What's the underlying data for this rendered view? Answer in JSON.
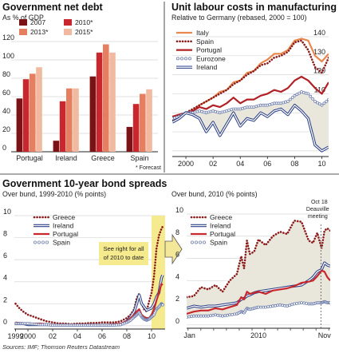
{
  "source": "Sources: IMF; Thomson Reuters Datastream",
  "chart_data": [
    {
      "id": "debt",
      "type": "bar",
      "title": "Government net debt",
      "subtitle": "As % of GDP",
      "categories": [
        "Portugal",
        "Ireland",
        "Greece",
        "Spain"
      ],
      "series": [
        {
          "name": "2007",
          "color": "#7b1216",
          "values": [
            58,
            12,
            82,
            27
          ]
        },
        {
          "name": "2010*",
          "color": "#c8282d",
          "values": [
            79,
            55,
            108,
            52
          ]
        },
        {
          "name": "2013*",
          "color": "#e57f60",
          "values": [
            85,
            69,
            117,
            63
          ]
        },
        {
          "name": "2015*",
          "color": "#f1b9a0",
          "values": [
            92,
            69,
            108,
            68
          ]
        }
      ],
      "ylim": [
        0,
        120
      ],
      "yticks": [
        0,
        20,
        40,
        60,
        80,
        100,
        120
      ],
      "forecast_note": "* Forecast"
    },
    {
      "id": "ulc",
      "type": "line",
      "title": "Unit labour costs in manufacturing",
      "subtitle": "Relative to Germany (rebased, 2000 = 100)",
      "x": [
        1999.0,
        1999.5,
        2000.0,
        2000.5,
        2001.0,
        2001.5,
        2002.0,
        2002.5,
        2003.0,
        2003.5,
        2004.0,
        2004.5,
        2005.0,
        2005.5,
        2006.0,
        2006.5,
        2007.0,
        2007.5,
        2008.0,
        2008.5,
        2009.0,
        2009.5,
        2010.0,
        2010.5
      ],
      "series": [
        {
          "name": "Italy",
          "color": "#e8884f",
          "style": "solid",
          "values": [
            97,
            98,
            100,
            101,
            104,
            106,
            108,
            111,
            112,
            116,
            117,
            121,
            122,
            126,
            128,
            131,
            131,
            133,
            138,
            139,
            138,
            130,
            127,
            131
          ]
        },
        {
          "name": "Spain",
          "color": "#8b1a1a",
          "style": "dotted",
          "values": [
            96,
            98,
            100,
            102,
            104,
            106,
            108,
            110,
            112,
            115,
            117,
            120,
            122,
            125,
            126,
            129,
            130,
            132,
            137,
            138,
            133,
            124,
            121,
            129
          ]
        },
        {
          "name": "Portugal",
          "color": "#b21f24",
          "style": "solid",
          "values": [
            98,
            99,
            100,
            101,
            103,
            102,
            104,
            103,
            105,
            108,
            105,
            107,
            107,
            109,
            110,
            112,
            111,
            113,
            117,
            119,
            117,
            113,
            110,
            116
          ]
        },
        {
          "name": "Eurozone",
          "color": "#6f7fae",
          "style": "circles",
          "values": [
            97,
            98,
            100,
            100,
            101,
            100,
            101,
            100,
            101,
            102,
            102,
            103,
            103,
            104,
            104,
            105,
            105,
            106,
            109,
            111,
            110,
            106,
            104,
            107
          ]
        },
        {
          "name": "Ireland",
          "color": "#2b3f86",
          "style": "double",
          "values": [
            95,
            97,
            100,
            99,
            97,
            90,
            95,
            88,
            94,
            100,
            93,
            97,
            96,
            100,
            98,
            101,
            102,
            99,
            104,
            101,
            97,
            83,
            80,
            82
          ]
        }
      ],
      "xticks": [
        "2000",
        "02",
        "04",
        "06",
        "08",
        "10"
      ],
      "xtick_values": [
        2000,
        2002,
        2004,
        2006,
        2008,
        2010
      ],
      "ylim": [
        77,
        140
      ],
      "yticks": [
        80,
        90,
        100,
        110,
        120,
        130,
        140
      ],
      "shade": "between Eurozone and Ireland"
    },
    {
      "id": "spreads_long",
      "type": "line",
      "title": "Government 10-year bond spreads",
      "subtitle": "Over bund, 1999-2010 (% points)",
      "x": [
        1999.0,
        1999.3,
        1999.6,
        2000.0,
        2000.5,
        2001.0,
        2001.5,
        2002.0,
        2002.5,
        2003.0,
        2003.5,
        2004.0,
        2004.5,
        2005.0,
        2005.5,
        2006.0,
        2006.5,
        2007.0,
        2007.5,
        2008.0,
        2008.3,
        2008.6,
        2008.8,
        2009.0,
        2009.2,
        2009.4,
        2009.6,
        2009.8,
        2010.0,
        2010.2,
        2010.4,
        2010.6,
        2010.8,
        2010.9
      ],
      "series": [
        {
          "name": "Greece",
          "color": "#8b1a1a",
          "style": "dotted",
          "values": [
            2.0,
            1.6,
            1.3,
            1.0,
            0.8,
            0.6,
            0.4,
            0.3,
            0.2,
            0.2,
            0.15,
            0.2,
            0.2,
            0.25,
            0.25,
            0.3,
            0.3,
            0.3,
            0.4,
            0.7,
            1.0,
            1.5,
            2.5,
            2.9,
            2.0,
            1.5,
            1.3,
            2.2,
            3.0,
            4.5,
            7.0,
            8.2,
            8.8,
            9.0
          ]
        },
        {
          "name": "Ireland",
          "color": "#2b3f86",
          "style": "double",
          "values": [
            0.2,
            0.2,
            0.2,
            0.1,
            0.1,
            0.1,
            0.1,
            0.05,
            0.05,
            0.05,
            0.05,
            0.05,
            0.05,
            0.05,
            0.05,
            0.05,
            0.05,
            0.1,
            0.1,
            0.4,
            0.8,
            1.3,
            2.0,
            2.8,
            2.0,
            1.7,
            1.4,
            1.5,
            1.6,
            2.0,
            2.6,
            3.0,
            4.3,
            4.6
          ]
        },
        {
          "name": "Portugal",
          "color": "#c8282d",
          "style": "solid",
          "values": [
            0.3,
            0.25,
            0.2,
            0.2,
            0.2,
            0.2,
            0.15,
            0.1,
            0.1,
            0.1,
            0.1,
            0.1,
            0.1,
            0.1,
            0.1,
            0.1,
            0.1,
            0.15,
            0.2,
            0.4,
            0.7,
            1.0,
            1.3,
            1.5,
            1.0,
            0.8,
            0.7,
            0.7,
            1.0,
            1.5,
            2.3,
            3.0,
            3.8,
            3.7
          ]
        },
        {
          "name": "Spain",
          "color": "#6f7fae",
          "style": "circles",
          "values": [
            0.2,
            0.2,
            0.2,
            0.2,
            0.15,
            0.1,
            0.1,
            0.05,
            0.05,
            0.05,
            0.05,
            0.05,
            0.05,
            0.05,
            0.05,
            0.05,
            0.05,
            0.05,
            0.1,
            0.3,
            0.5,
            0.8,
            1.0,
            1.2,
            0.8,
            0.6,
            0.5,
            0.6,
            0.8,
            1.0,
            1.5,
            1.7,
            2.0,
            1.9
          ]
        }
      ],
      "xticks": [
        "1999",
        "2000",
        "02",
        "04",
        "06",
        "08",
        "10"
      ],
      "xtick_values": [
        1999,
        2000,
        2002,
        2004,
        2006,
        2008,
        2010
      ],
      "ylim": [
        -0.3,
        10
      ],
      "yticks": [
        0,
        2,
        4,
        6,
        8,
        10
      ],
      "highlight_start": 2010.0,
      "highlight_note": "See right for all of 2010 to date"
    },
    {
      "id": "spreads_2010",
      "type": "line",
      "subtitle": "Over bund, 2010 (% points)",
      "x": [
        0.0,
        0.05,
        0.1,
        0.15,
        0.2,
        0.25,
        0.3,
        0.35,
        0.38,
        0.4,
        0.42,
        0.44,
        0.47,
        0.5,
        0.55,
        0.6,
        0.65,
        0.7,
        0.75,
        0.8,
        0.85,
        0.88,
        0.91,
        0.94,
        0.96,
        0.98,
        1.0
      ],
      "series": [
        {
          "name": "Greece",
          "color": "#8b1a1a",
          "style": "dotted",
          "values": [
            2.5,
            2.6,
            3.4,
            3.2,
            3.6,
            3.0,
            4.0,
            4.6,
            6.2,
            5.1,
            7.6,
            6.4,
            6.6,
            7.7,
            7.2,
            8.0,
            8.4,
            8.2,
            9.4,
            9.3,
            7.6,
            7.4,
            8.3,
            6.9,
            8.5,
            8.7,
            8.5
          ]
        },
        {
          "name": "Ireland",
          "color": "#2b3f86",
          "style": "double",
          "values": [
            1.5,
            1.7,
            1.6,
            1.7,
            1.7,
            1.8,
            1.9,
            2.0,
            2.3,
            2.4,
            2.6,
            2.7,
            2.9,
            3.0,
            3.1,
            3.2,
            3.3,
            3.4,
            3.5,
            3.6,
            4.0,
            4.3,
            4.8,
            5.0,
            5.6,
            5.4,
            5.3
          ]
        },
        {
          "name": "Portugal",
          "color": "#c8282d",
          "style": "solid",
          "values": [
            1.0,
            1.2,
            1.3,
            1.3,
            1.5,
            1.4,
            1.6,
            1.8,
            2.5,
            2.3,
            3.0,
            2.8,
            2.9,
            3.0,
            2.8,
            3.1,
            3.2,
            3.3,
            3.5,
            3.8,
            3.9,
            4.0,
            4.4,
            4.9,
            4.8,
            4.3,
            4.0
          ]
        },
        {
          "name": "Spain",
          "color": "#6f7fae",
          "style": "circles",
          "values": [
            0.7,
            0.8,
            0.8,
            0.8,
            0.9,
            0.8,
            0.9,
            1.0,
            1.2,
            1.1,
            1.5,
            1.4,
            1.5,
            1.6,
            1.6,
            1.7,
            1.8,
            1.7,
            1.9,
            2.0,
            1.9,
            1.9,
            2.0,
            2.0,
            2.1,
            2.0,
            2.0
          ]
        }
      ],
      "xticks": [
        "Jan",
        "2010",
        "Nov"
      ],
      "xtick_positions": [
        0.02,
        0.5,
        0.96
      ],
      "ylim": [
        -0.3,
        10
      ],
      "yticks": [
        0,
        2,
        4,
        6,
        8,
        10
      ],
      "event": {
        "label_line1": "Oct 18",
        "label_line2": "Deauville",
        "label_line3": "meeting",
        "position": 0.935
      }
    }
  ]
}
